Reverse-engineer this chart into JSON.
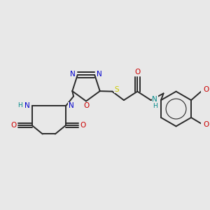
{
  "bg_color": "#e8e8e8",
  "bond_color": "#2a2a2a",
  "bond_width": 1.4,
  "atom_colors": {
    "N": "#0000cc",
    "O": "#cc0000",
    "S": "#cccc00",
    "NH": "#008888",
    "H": "#008888",
    "C": "#2a2a2a"
  }
}
